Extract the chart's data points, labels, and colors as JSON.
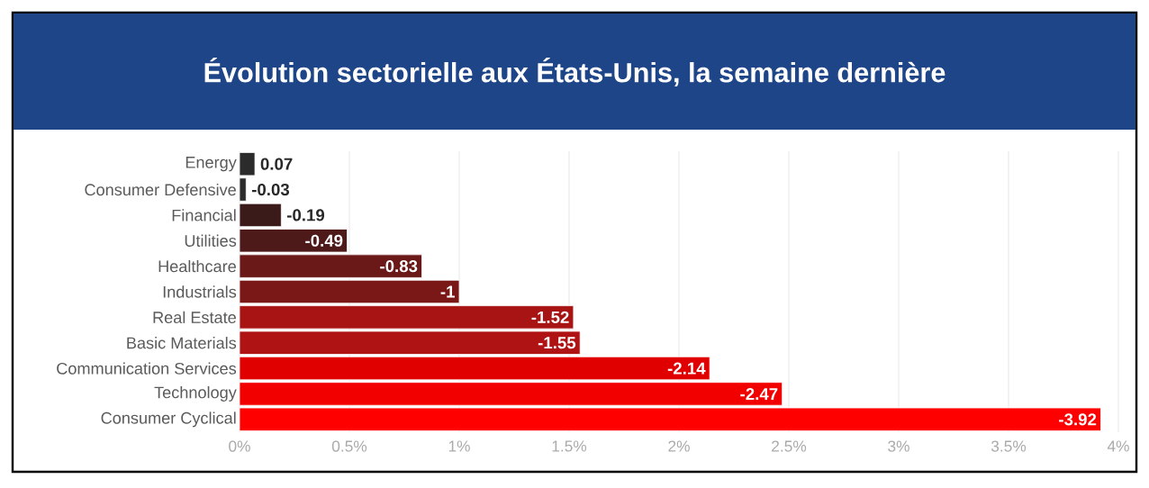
{
  "chart_data": {
    "type": "bar",
    "orientation": "horizontal",
    "title": "Évolution sectorielle aux États-Unis, la semaine dernière",
    "categories": [
      "Energy",
      "Consumer Defensive",
      "Financial",
      "Utilities",
      "Healthcare",
      "Industrials",
      "Real Estate",
      "Basic Materials",
      "Communication Services",
      "Technology",
      "Consumer Cyclical"
    ],
    "values": [
      0.07,
      0.03,
      0.19,
      0.49,
      0.83,
      1,
      1.52,
      1.55,
      2.14,
      2.47,
      3.92
    ],
    "annotations": [
      {
        "text": "0.07",
        "x": 0.07,
        "y": "Energy"
      },
      {
        "text": "-0.03",
        "x": 0.03,
        "y": "Consumer Defensive"
      },
      {
        "text": "-0.19",
        "x": 0.19,
        "y": "Financial"
      },
      {
        "text": "-0.49",
        "x": 0.49,
        "y": "Utilities"
      },
      {
        "text": "-0.83",
        "x": 0.83,
        "y": "Healthcare"
      },
      {
        "text": "-1",
        "x": 1,
        "y": "Industrials"
      },
      {
        "text": "-1.52",
        "x": 1.52,
        "y": "Real Estate"
      },
      {
        "text": "-1.55",
        "x": 1.55,
        "y": "Basic Materials"
      },
      {
        "text": "-2.14",
        "x": 2.14,
        "y": "Communication Services"
      },
      {
        "text": "-2.47",
        "x": 2.47,
        "y": "Technology"
      },
      {
        "text": "-3.92",
        "x": 3.92,
        "y": "Consumer Cyclical"
      }
    ],
    "colors": [
      "#2b2b2b",
      "#2b2b2b",
      "#3b1a1a",
      "#4e1919",
      "#6a1818",
      "#7a1818",
      "#a81414",
      "#b01313",
      "#e00000",
      "#f20000",
      "#ff0000"
    ],
    "xlim": [
      0,
      4
    ],
    "xticks": [
      {
        "value": 0,
        "label": "0%"
      },
      {
        "value": 0.5,
        "label": "0.5%"
      },
      {
        "value": 1,
        "label": "1%"
      },
      {
        "value": 1.5,
        "label": "1.5%"
      },
      {
        "value": 2,
        "label": "2%"
      },
      {
        "value": 2.5,
        "label": "2.5%"
      },
      {
        "value": 3,
        "label": "3%"
      },
      {
        "value": 3.5,
        "label": "3.5%"
      },
      {
        "value": 4,
        "label": "4%"
      }
    ],
    "grid": "x"
  }
}
